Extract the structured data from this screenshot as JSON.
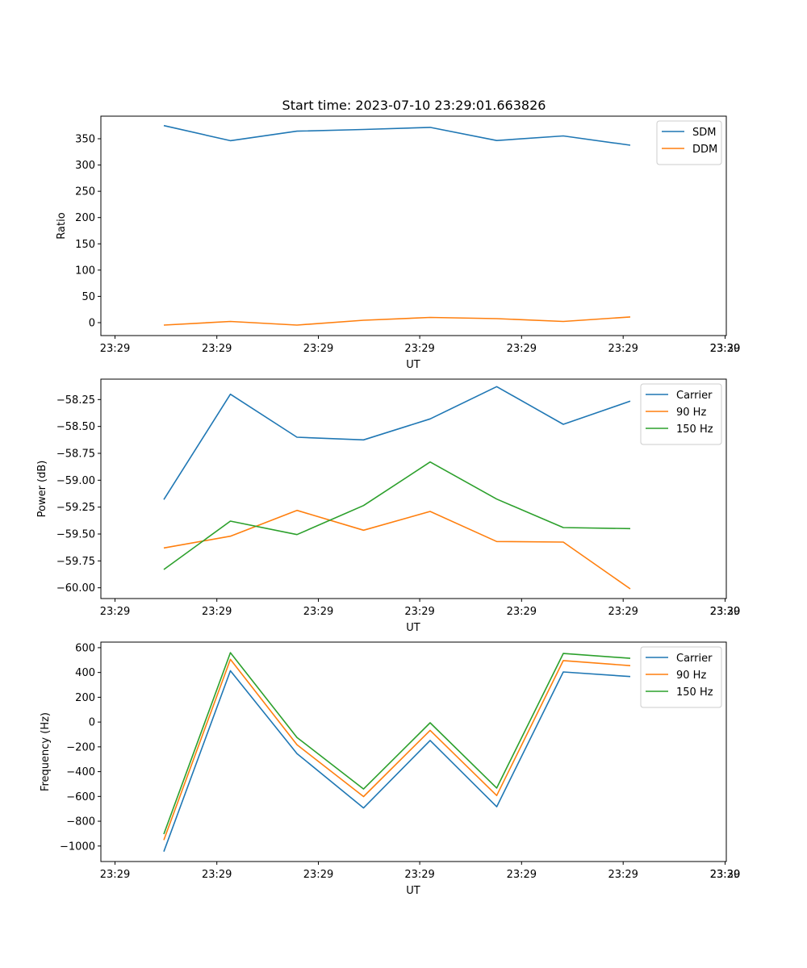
{
  "figure": {
    "title": "Start time: 2023-07-10 23:29:01.663826",
    "background": "#ffffff"
  },
  "chart_data": [
    {
      "type": "line",
      "title": "Start time: 2023-07-10 23:29:01.663826",
      "xlabel": "UT",
      "ylabel": "Ratio",
      "x_tick_labels": [
        "23:29",
        "23:29",
        "23:29",
        "23:29",
        "23:29",
        "23:29",
        "23:29",
        "23:30"
      ],
      "y_ticks": [
        0,
        50,
        100,
        150,
        200,
        250,
        300,
        350
      ],
      "y_tick_labels": [
        "0",
        "50",
        "100",
        "150",
        "200",
        "250",
        "300",
        "350"
      ],
      "ylim": [
        -24.6,
        393
      ],
      "legend_position": "top-right",
      "series": [
        {
          "name": "SDM",
          "color": "#1f77b4",
          "values": [
            375.0,
            346.3,
            364.5,
            367.7,
            371.6,
            346.7,
            355.4,
            337.8
          ]
        },
        {
          "name": "DDM",
          "color": "#ff7f0e",
          "values": [
            -4.6,
            2.3,
            -4.6,
            4.6,
            10.0,
            7.7,
            2.3,
            10.8
          ]
        }
      ]
    },
    {
      "type": "line",
      "title": "",
      "xlabel": "UT",
      "ylabel": "Power (dB)",
      "x_tick_labels": [
        "23:29",
        "23:29",
        "23:29",
        "23:29",
        "23:29",
        "23:29",
        "23:29",
        "23:30"
      ],
      "y_ticks": [
        -60.0,
        -59.75,
        -59.5,
        -59.25,
        -59.0,
        -58.75,
        -58.5,
        -58.25
      ],
      "y_tick_labels": [
        "−60.00",
        "−59.75",
        "−59.50",
        "−59.25",
        "−59.00",
        "−58.75",
        "−58.50",
        "−58.25"
      ],
      "ylim": [
        -60.1,
        -58.06
      ],
      "legend_position": "top-right",
      "series": [
        {
          "name": "Carrier",
          "color": "#1f77b4",
          "values": [
            -59.18,
            -58.2,
            -58.6,
            -58.625,
            -58.43,
            -58.13,
            -58.48,
            -58.265
          ]
        },
        {
          "name": "90 Hz",
          "color": "#ff7f0e",
          "values": [
            -59.63,
            -59.52,
            -59.28,
            -59.465,
            -59.29,
            -59.57,
            -59.575,
            -60.01
          ]
        },
        {
          "name": "150 Hz",
          "color": "#2ca02c",
          "values": [
            -59.83,
            -59.38,
            -59.505,
            -59.235,
            -58.83,
            -59.175,
            -59.44,
            -59.45
          ]
        }
      ]
    },
    {
      "type": "line",
      "title": "",
      "xlabel": "UT",
      "ylabel": "Frequency (Hz)",
      "x_tick_labels": [
        "23:29",
        "23:29",
        "23:29",
        "23:29",
        "23:29",
        "23:29",
        "23:29",
        "23:30"
      ],
      "y_ticks": [
        -1000,
        -800,
        -600,
        -400,
        -200,
        0,
        200,
        400,
        600
      ],
      "y_tick_labels": [
        "−1000",
        "−800",
        "−600",
        "−400",
        "−200",
        "0",
        "200",
        "400",
        "600"
      ],
      "ylim": [
        -1125,
        645
      ],
      "legend_position": "top-right",
      "series": [
        {
          "name": "Carrier",
          "color": "#1f77b4",
          "values": [
            -1045,
            414,
            -254,
            -693,
            -148,
            -683,
            404,
            367
          ]
        },
        {
          "name": "90 Hz",
          "color": "#ff7f0e",
          "values": [
            -952,
            506,
            -183,
            -601,
            -67,
            -593,
            496,
            455
          ]
        },
        {
          "name": "150 Hz",
          "color": "#2ca02c",
          "values": [
            -904,
            560,
            -124,
            -540,
            -6,
            -532,
            553,
            514
          ]
        }
      ]
    }
  ]
}
